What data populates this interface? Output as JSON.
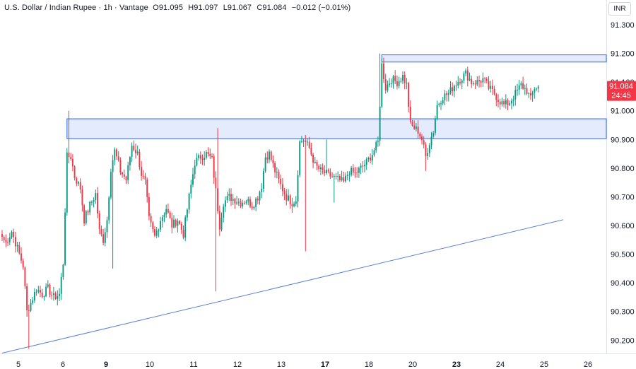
{
  "header": {
    "symbol": "U.S. Dollar / Indian Rupee",
    "sep1": " · ",
    "interval": "1h",
    "sep2": " · ",
    "source": "Vantage",
    "open_label": "O",
    "open": "91.095",
    "high_label": "H",
    "high": "91.097",
    "low_label": "L",
    "low": "91.067",
    "close_label": "C",
    "close": "91.084",
    "change": "−0.012 (−0.01%)"
  },
  "currency_button": "INR",
  "price_tag": {
    "price": "91.084",
    "countdown": "24:45"
  },
  "colors": {
    "up": "#089981",
    "down": "#f23645",
    "zone_fill": "#dbe4fb",
    "zone_stroke": "#2962ff",
    "trendline": "#5b7fd6",
    "price_tag": "#f23645"
  },
  "chart_data": {
    "type": "candlestick",
    "ylim": [
      90.16,
      91.3
    ],
    "y_ticks": [
      "91.300",
      "91.200",
      "91.100",
      "91.000",
      "90.900",
      "90.800",
      "90.700",
      "90.600",
      "90.500",
      "90.400",
      "90.300",
      "90.200"
    ],
    "x_ticks": [
      {
        "label": "5",
        "bold": false
      },
      {
        "label": "6",
        "bold": false
      },
      {
        "label": "9",
        "bold": true
      },
      {
        "label": "10",
        "bold": false
      },
      {
        "label": "11",
        "bold": false
      },
      {
        "label": "12",
        "bold": false
      },
      {
        "label": "13",
        "bold": false
      },
      {
        "label": "17",
        "bold": true
      },
      {
        "label": "18",
        "bold": false
      },
      {
        "label": "20",
        "bold": false
      },
      {
        "label": "23",
        "bold": true
      },
      {
        "label": "24",
        "bold": false
      },
      {
        "label": "25",
        "bold": false
      },
      {
        "label": "26",
        "bold": false
      }
    ],
    "zones": [
      {
        "name": "resistance-zone-upper",
        "y_top": 91.195,
        "y_bottom": 91.17,
        "from_candle": 199
      },
      {
        "name": "support-zone",
        "y_top": 90.972,
        "y_bottom": 90.903,
        "from_candle": 34
      }
    ],
    "trendline": {
      "from": {
        "candle": 0,
        "y": 90.155
      },
      "to": {
        "candle": 294,
        "y": 90.62
      }
    },
    "anchors": [
      [
        0,
        90.56
      ],
      [
        2,
        90.54
      ],
      [
        5,
        90.58
      ],
      [
        8,
        90.52
      ],
      [
        11,
        90.46
      ],
      [
        13,
        90.3
      ],
      [
        15,
        90.33
      ],
      [
        18,
        90.38
      ],
      [
        21,
        90.36
      ],
      [
        24,
        90.38
      ],
      [
        27,
        90.35
      ],
      [
        30,
        90.36
      ],
      [
        32,
        90.47
      ],
      [
        34,
        90.84
      ],
      [
        36,
        90.84
      ],
      [
        38,
        90.77
      ],
      [
        41,
        90.73
      ],
      [
        43,
        90.62
      ],
      [
        46,
        90.67
      ],
      [
        49,
        90.71
      ],
      [
        51,
        90.58
      ],
      [
        53,
        90.55
      ],
      [
        55,
        90.62
      ],
      [
        57,
        90.8
      ],
      [
        59,
        90.86
      ],
      [
        62,
        90.79
      ],
      [
        65,
        90.76
      ],
      [
        68,
        90.88
      ],
      [
        71,
        90.85
      ],
      [
        73,
        90.78
      ],
      [
        75,
        90.75
      ],
      [
        77,
        90.62
      ],
      [
        80,
        90.56
      ],
      [
        83,
        90.62
      ],
      [
        86,
        90.66
      ],
      [
        89,
        90.6
      ],
      [
        92,
        90.62
      ],
      [
        95,
        90.57
      ],
      [
        98,
        90.7
      ],
      [
        101,
        90.82
      ],
      [
        104,
        90.84
      ],
      [
        107,
        90.85
      ],
      [
        110,
        90.83
      ],
      [
        112,
        90.72
      ],
      [
        114,
        90.6
      ],
      [
        116,
        90.68
      ],
      [
        119,
        90.7
      ],
      [
        122,
        90.69
      ],
      [
        125,
        90.68
      ],
      [
        128,
        90.69
      ],
      [
        131,
        90.67
      ],
      [
        134,
        90.7
      ],
      [
        136,
        90.74
      ],
      [
        138,
        90.84
      ],
      [
        140,
        90.85
      ],
      [
        143,
        90.79
      ],
      [
        146,
        90.74
      ],
      [
        149,
        90.7
      ],
      [
        152,
        90.68
      ],
      [
        154,
        90.69
      ],
      [
        156,
        90.89
      ],
      [
        158,
        90.9
      ],
      [
        161,
        90.87
      ],
      [
        164,
        90.81
      ],
      [
        167,
        90.79
      ],
      [
        170,
        90.78
      ],
      [
        173,
        90.77
      ],
      [
        176,
        90.76
      ],
      [
        179,
        90.75
      ],
      [
        182,
        90.79
      ],
      [
        185,
        90.78
      ],
      [
        188,
        90.8
      ],
      [
        191,
        90.82
      ],
      [
        194,
        90.85
      ],
      [
        197,
        90.89
      ],
      [
        199,
        91.16
      ],
      [
        201,
        91.08
      ],
      [
        204,
        91.11
      ],
      [
        207,
        91.1
      ],
      [
        210,
        91.12
      ],
      [
        212,
        91.09
      ],
      [
        214,
        90.95
      ],
      [
        216,
        90.94
      ],
      [
        218,
        90.93
      ],
      [
        220,
        90.9
      ],
      [
        222,
        90.84
      ],
      [
        224,
        90.89
      ],
      [
        226,
        90.93
      ],
      [
        228,
        91.02
      ],
      [
        231,
        91.05
      ],
      [
        234,
        91.06
      ],
      [
        237,
        91.09
      ],
      [
        240,
        91.11
      ],
      [
        243,
        91.13
      ],
      [
        246,
        91.1
      ],
      [
        249,
        91.1
      ],
      [
        252,
        91.11
      ],
      [
        255,
        91.08
      ],
      [
        258,
        91.06
      ],
      [
        260,
        91.04
      ],
      [
        263,
        91.02
      ],
      [
        266,
        91.03
      ],
      [
        269,
        91.06
      ],
      [
        272,
        91.09
      ],
      [
        275,
        91.07
      ],
      [
        277,
        91.04
      ],
      [
        279,
        91.08
      ],
      [
        281,
        91.084
      ]
    ]
  }
}
